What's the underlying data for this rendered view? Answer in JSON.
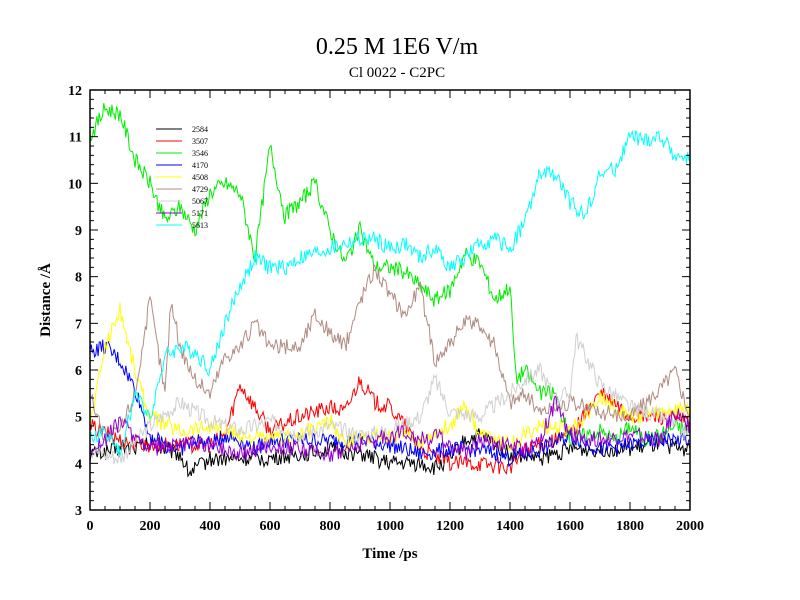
{
  "chart_data": {
    "type": "line",
    "title": "0.25 M 1E6 V/m",
    "subtitle": "Cl 0022 - C2PC",
    "xlabel": "Time /ps",
    "ylabel": "Distance /Å",
    "xlim": [
      0,
      2000
    ],
    "ylim": [
      3,
      12
    ],
    "xticks": [
      0,
      200,
      400,
      600,
      800,
      1000,
      1200,
      1400,
      1600,
      1800,
      2000
    ],
    "yticks": [
      3,
      4,
      5,
      6,
      7,
      8,
      9,
      10,
      11,
      12
    ],
    "grid": false,
    "legend_position": "top-left",
    "series": [
      {
        "name": "2584",
        "color": "#000000",
        "points": [
          [
            0,
            4.2
          ],
          [
            100,
            4.3
          ],
          [
            200,
            4.4
          ],
          [
            300,
            4.2
          ],
          [
            330,
            3.8
          ],
          [
            400,
            4.1
          ],
          [
            500,
            4.1
          ],
          [
            600,
            4.1
          ],
          [
            700,
            4.2
          ],
          [
            800,
            4.3
          ],
          [
            900,
            4.2
          ],
          [
            1000,
            4.0
          ],
          [
            1100,
            4.0
          ],
          [
            1150,
            3.9
          ],
          [
            1200,
            4.1
          ],
          [
            1250,
            4.5
          ],
          [
            1300,
            4.6
          ],
          [
            1350,
            4.4
          ],
          [
            1400,
            4.2
          ],
          [
            1500,
            4.1
          ],
          [
            1600,
            4.3
          ],
          [
            1700,
            4.3
          ],
          [
            1800,
            4.3
          ],
          [
            1900,
            4.4
          ],
          [
            2000,
            4.3
          ]
        ]
      },
      {
        "name": "3507",
        "color": "#ff0000",
        "points": [
          [
            0,
            4.8
          ],
          [
            100,
            4.5
          ],
          [
            200,
            4.4
          ],
          [
            300,
            4.4
          ],
          [
            400,
            4.4
          ],
          [
            450,
            4.6
          ],
          [
            500,
            5.7
          ],
          [
            550,
            5.2
          ],
          [
            600,
            4.7
          ],
          [
            700,
            5.0
          ],
          [
            800,
            5.2
          ],
          [
            850,
            5.1
          ],
          [
            900,
            5.8
          ],
          [
            950,
            5.3
          ],
          [
            1000,
            5.2
          ],
          [
            1050,
            4.8
          ],
          [
            1100,
            4.3
          ],
          [
            1200,
            4.0
          ],
          [
            1300,
            4.0
          ],
          [
            1400,
            3.9
          ],
          [
            1450,
            4.3
          ],
          [
            1500,
            4.4
          ],
          [
            1600,
            4.6
          ],
          [
            1700,
            5.5
          ],
          [
            1800,
            5.0
          ],
          [
            1900,
            5.0
          ],
          [
            2000,
            4.9
          ]
        ]
      },
      {
        "name": "3546",
        "color": "#00ee00",
        "points": [
          [
            0,
            11.0
          ],
          [
            50,
            11.6
          ],
          [
            100,
            11.5
          ],
          [
            150,
            10.5
          ],
          [
            200,
            10.0
          ],
          [
            250,
            9.2
          ],
          [
            300,
            9.5
          ],
          [
            350,
            9.0
          ],
          [
            400,
            9.8
          ],
          [
            450,
            10.0
          ],
          [
            500,
            9.8
          ],
          [
            550,
            8.4
          ],
          [
            600,
            10.8
          ],
          [
            650,
            9.3
          ],
          [
            700,
            9.6
          ],
          [
            750,
            10.0
          ],
          [
            800,
            9.0
          ],
          [
            850,
            8.3
          ],
          [
            900,
            9.0
          ],
          [
            950,
            8.2
          ],
          [
            1000,
            8.2
          ],
          [
            1050,
            8.1
          ],
          [
            1100,
            7.8
          ],
          [
            1150,
            7.5
          ],
          [
            1200,
            7.7
          ],
          [
            1250,
            8.5
          ],
          [
            1300,
            8.3
          ],
          [
            1350,
            7.5
          ],
          [
            1400,
            7.8
          ],
          [
            1420,
            5.8
          ],
          [
            1450,
            6.0
          ],
          [
            1500,
            5.5
          ],
          [
            1550,
            5.5
          ],
          [
            1600,
            4.5
          ],
          [
            1650,
            4.6
          ],
          [
            1700,
            4.7
          ],
          [
            1750,
            4.5
          ],
          [
            1800,
            4.8
          ],
          [
            1850,
            4.5
          ],
          [
            1900,
            4.6
          ],
          [
            1950,
            4.8
          ],
          [
            2000,
            4.7
          ]
        ]
      },
      {
        "name": "4170",
        "color": "#0000ff",
        "points": [
          [
            0,
            6.4
          ],
          [
            50,
            6.5
          ],
          [
            100,
            6.2
          ],
          [
            150,
            5.6
          ],
          [
            200,
            4.6
          ],
          [
            250,
            4.4
          ],
          [
            300,
            4.3
          ],
          [
            350,
            4.5
          ],
          [
            400,
            4.4
          ],
          [
            450,
            4.6
          ],
          [
            500,
            4.5
          ],
          [
            550,
            4.3
          ],
          [
            600,
            4.5
          ],
          [
            700,
            4.5
          ],
          [
            800,
            4.5
          ],
          [
            900,
            4.5
          ],
          [
            1000,
            4.4
          ],
          [
            1100,
            4.2
          ],
          [
            1200,
            4.3
          ],
          [
            1300,
            4.3
          ],
          [
            1400,
            4.1
          ],
          [
            1500,
            4.3
          ],
          [
            1600,
            4.6
          ],
          [
            1700,
            4.3
          ],
          [
            1800,
            4.4
          ],
          [
            1900,
            4.5
          ],
          [
            2000,
            4.5
          ]
        ]
      },
      {
        "name": "4508",
        "color": "#ffff00",
        "points": [
          [
            0,
            4.8
          ],
          [
            50,
            6.5
          ],
          [
            100,
            7.3
          ],
          [
            150,
            6.0
          ],
          [
            200,
            5.0
          ],
          [
            300,
            4.7
          ],
          [
            400,
            4.8
          ],
          [
            500,
            4.6
          ],
          [
            600,
            4.5
          ],
          [
            700,
            4.6
          ],
          [
            800,
            4.9
          ],
          [
            850,
            4.4
          ],
          [
            900,
            4.6
          ],
          [
            1000,
            4.6
          ],
          [
            1100,
            4.5
          ],
          [
            1200,
            4.8
          ],
          [
            1250,
            5.3
          ],
          [
            1300,
            4.6
          ],
          [
            1400,
            4.4
          ],
          [
            1500,
            4.8
          ],
          [
            1600,
            4.7
          ],
          [
            1700,
            5.4
          ],
          [
            1800,
            5.0
          ],
          [
            1900,
            5.1
          ],
          [
            2000,
            5.2
          ]
        ]
      },
      {
        "name": "4729",
        "color": "#b08c82",
        "points": [
          [
            0,
            5.5
          ],
          [
            50,
            4.5
          ],
          [
            100,
            4.7
          ],
          [
            150,
            5.5
          ],
          [
            200,
            7.5
          ],
          [
            250,
            5.5
          ],
          [
            270,
            7.5
          ],
          [
            300,
            6.5
          ],
          [
            350,
            5.8
          ],
          [
            400,
            5.5
          ],
          [
            450,
            6.3
          ],
          [
            500,
            6.5
          ],
          [
            550,
            7.0
          ],
          [
            600,
            6.5
          ],
          [
            700,
            6.5
          ],
          [
            750,
            7.2
          ],
          [
            800,
            6.8
          ],
          [
            850,
            6.5
          ],
          [
            900,
            7.5
          ],
          [
            950,
            8.2
          ],
          [
            1000,
            7.6
          ],
          [
            1050,
            7.2
          ],
          [
            1100,
            7.8
          ],
          [
            1150,
            6.2
          ],
          [
            1200,
            6.6
          ],
          [
            1250,
            7.0
          ],
          [
            1300,
            7.0
          ],
          [
            1350,
            6.5
          ],
          [
            1400,
            5.3
          ],
          [
            1450,
            5.5
          ],
          [
            1500,
            5.1
          ],
          [
            1600,
            5.3
          ],
          [
            1700,
            5.1
          ],
          [
            1800,
            5.0
          ],
          [
            1900,
            5.6
          ],
          [
            1950,
            6.0
          ],
          [
            2000,
            5.0
          ]
        ]
      },
      {
        "name": "5067",
        "color": "#d0d0d0",
        "points": [
          [
            0,
            4.3
          ],
          [
            100,
            4.1
          ],
          [
            200,
            4.8
          ],
          [
            300,
            5.3
          ],
          [
            400,
            4.9
          ],
          [
            500,
            4.7
          ],
          [
            600,
            4.9
          ],
          [
            700,
            4.6
          ],
          [
            800,
            4.8
          ],
          [
            900,
            4.6
          ],
          [
            1000,
            4.7
          ],
          [
            1100,
            5.0
          ],
          [
            1150,
            5.8
          ],
          [
            1200,
            5.1
          ],
          [
            1300,
            5.0
          ],
          [
            1400,
            5.5
          ],
          [
            1450,
            5.8
          ],
          [
            1500,
            6.0
          ],
          [
            1550,
            5.4
          ],
          [
            1600,
            5.5
          ],
          [
            1620,
            6.7
          ],
          [
            1700,
            5.7
          ],
          [
            1800,
            5.2
          ],
          [
            1900,
            5.0
          ],
          [
            2000,
            4.6
          ]
        ]
      },
      {
        "name": "5171",
        "color": "#9400d3",
        "points": [
          [
            0,
            4.3
          ],
          [
            50,
            4.5
          ],
          [
            100,
            4.9
          ],
          [
            200,
            4.3
          ],
          [
            300,
            4.4
          ],
          [
            400,
            4.4
          ],
          [
            500,
            4.2
          ],
          [
            600,
            4.4
          ],
          [
            700,
            4.3
          ],
          [
            800,
            4.2
          ],
          [
            900,
            4.4
          ],
          [
            1000,
            4.6
          ],
          [
            1050,
            4.7
          ],
          [
            1100,
            4.5
          ],
          [
            1150,
            4.6
          ],
          [
            1200,
            4.4
          ],
          [
            1250,
            4.2
          ],
          [
            1300,
            4.5
          ],
          [
            1400,
            4.4
          ],
          [
            1450,
            4.3
          ],
          [
            1500,
            4.5
          ],
          [
            1550,
            5.3
          ],
          [
            1600,
            4.6
          ],
          [
            1700,
            4.5
          ],
          [
            1800,
            4.6
          ],
          [
            1900,
            4.5
          ],
          [
            1950,
            5.1
          ],
          [
            2000,
            4.8
          ]
        ]
      },
      {
        "name": "5613",
        "color": "#00ffff",
        "points": [
          [
            0,
            4.5
          ],
          [
            50,
            4.7
          ],
          [
            100,
            4.2
          ],
          [
            150,
            5.5
          ],
          [
            200,
            5.0
          ],
          [
            250,
            6.3
          ],
          [
            300,
            6.5
          ],
          [
            350,
            6.4
          ],
          [
            400,
            6.0
          ],
          [
            450,
            7.0
          ],
          [
            500,
            7.8
          ],
          [
            550,
            8.4
          ],
          [
            600,
            8.2
          ],
          [
            650,
            8.2
          ],
          [
            700,
            8.4
          ],
          [
            750,
            8.5
          ],
          [
            800,
            8.6
          ],
          [
            850,
            8.7
          ],
          [
            900,
            8.8
          ],
          [
            950,
            8.8
          ],
          [
            1000,
            8.6
          ],
          [
            1050,
            8.7
          ],
          [
            1100,
            8.4
          ],
          [
            1150,
            8.6
          ],
          [
            1200,
            8.2
          ],
          [
            1250,
            8.4
          ],
          [
            1300,
            8.7
          ],
          [
            1350,
            8.8
          ],
          [
            1400,
            8.6
          ],
          [
            1450,
            9.2
          ],
          [
            1500,
            10.2
          ],
          [
            1550,
            10.2
          ],
          [
            1600,
            9.6
          ],
          [
            1650,
            9.3
          ],
          [
            1700,
            10.2
          ],
          [
            1750,
            10.3
          ],
          [
            1800,
            11.0
          ],
          [
            1850,
            10.9
          ],
          [
            1900,
            11.0
          ],
          [
            1950,
            10.6
          ],
          [
            2000,
            10.5
          ]
        ]
      }
    ]
  }
}
